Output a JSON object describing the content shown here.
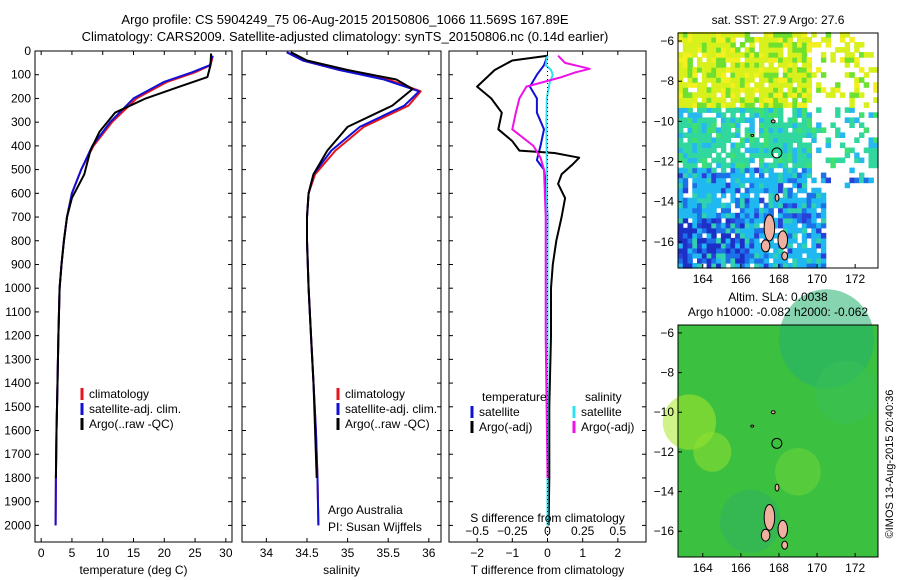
{
  "header": {
    "line1": "Argo profile: CS 5904249_75 06-Aug-2015 20150806_1066 11.569S 167.89E",
    "line2": "Climatology: CARS2009. Satellite-adjusted climatology: synTS_20150806.nc (0.14d earlier)"
  },
  "credit": "©IMOS 13-Aug-2015 20:40:36",
  "colors": {
    "climatology": "#e8141c",
    "satellite": "#1010d8",
    "argo": "#000000",
    "sat_salinity": "#30e0f0",
    "argo_salinity": "#f010e8"
  },
  "chart_data": [
    {
      "type": "line",
      "id": "temperature",
      "xlabel": "temperature (deg C)",
      "ylabel": "",
      "xlim": [
        -1,
        31
      ],
      "ylim": [
        2070,
        0
      ],
      "xticks": [
        0,
        5,
        10,
        15,
        20,
        25,
        30
      ],
      "yticks": [
        0,
        100,
        200,
        300,
        400,
        500,
        600,
        700,
        800,
        900,
        1000,
        1100,
        1200,
        1300,
        1400,
        1500,
        1600,
        1700,
        1800,
        1900,
        2000
      ],
      "legend": [
        "climatology",
        "satellite-adj. clim.",
        "Argo(..raw -QC)"
      ],
      "legend_position": "lower-middle",
      "series": [
        {
          "name": "climatology",
          "color": "#e8141c",
          "x": [
            27.9,
            27.5,
            25.0,
            20.5,
            15.5,
            11.5,
            8.5,
            6.5,
            5.0,
            4.2,
            3.7,
            3.3,
            3.0,
            2.8,
            2.65,
            2.5,
            2.4,
            2.35
          ],
          "y": [
            20,
            60,
            90,
            130,
            200,
            300,
            400,
            500,
            600,
            700,
            800,
            900,
            1000,
            1200,
            1400,
            1600,
            1800,
            2000
          ]
        },
        {
          "name": "satellite-adj. clim.",
          "color": "#1010d8",
          "x": [
            27.8,
            27.4,
            24.5,
            20.0,
            15.0,
            11.2,
            8.3,
            6.5,
            5.0,
            4.2,
            3.7,
            3.3,
            3.0,
            2.8,
            2.65,
            2.5,
            2.4,
            2.35
          ],
          "y": [
            20,
            60,
            90,
            130,
            200,
            300,
            400,
            500,
            600,
            700,
            800,
            900,
            1000,
            1200,
            1400,
            1600,
            1800,
            2000
          ]
        },
        {
          "name": "Argo(..raw -QC)",
          "color": "#000000",
          "x": [
            27.6,
            27.5,
            27.0,
            22.5,
            17.0,
            12.0,
            9.5,
            8.0,
            7.0,
            5.0,
            4.2,
            3.7,
            3.3,
            3.0,
            2.8,
            2.65,
            2.5,
            2.4
          ],
          "y": [
            10,
            60,
            110,
            150,
            200,
            260,
            340,
            420,
            520,
            620,
            700,
            800,
            900,
            1000,
            1200,
            1400,
            1600,
            1800
          ]
        }
      ]
    },
    {
      "type": "line",
      "id": "salinity",
      "xlabel": "salinity",
      "ylabel": "",
      "xlim": [
        33.7,
        36.15
      ],
      "ylim": [
        2070,
        0
      ],
      "xticks": [
        34,
        34.5,
        35,
        35.5,
        36
      ],
      "legend": [
        "climatology",
        "satellite-adj. clim.",
        "Argo(..raw -QC)"
      ],
      "legend_position": "lower-middle",
      "annotation": [
        "Argo Australia",
        "PI: Susan Wijffels"
      ],
      "series": [
        {
          "name": "climatology",
          "color": "#e8141c",
          "x": [
            34.25,
            34.45,
            34.9,
            35.5,
            35.9,
            35.75,
            35.2,
            34.85,
            34.6,
            34.52,
            34.5,
            34.5,
            34.52,
            34.55,
            34.58,
            34.61,
            34.63,
            34.64
          ],
          "y": [
            5,
            40,
            80,
            120,
            170,
            230,
            320,
            420,
            520,
            600,
            700,
            800,
            1000,
            1200,
            1400,
            1600,
            1800,
            2000
          ]
        },
        {
          "name": "satellite-adj. clim.",
          "color": "#1010d8",
          "x": [
            34.25,
            34.45,
            34.9,
            35.45,
            35.88,
            35.7,
            35.15,
            34.8,
            34.58,
            34.52,
            34.5,
            34.5,
            34.52,
            34.55,
            34.58,
            34.61,
            34.63,
            34.64
          ],
          "y": [
            5,
            40,
            80,
            120,
            170,
            230,
            320,
            420,
            520,
            600,
            700,
            800,
            1000,
            1200,
            1400,
            1600,
            1800,
            2000
          ]
        },
        {
          "name": "Argo(..raw -QC)",
          "color": "#000000",
          "x": [
            34.3,
            34.5,
            35.0,
            35.6,
            35.8,
            35.55,
            35.0,
            34.75,
            34.58,
            34.52,
            34.5,
            34.5,
            34.52,
            34.55,
            34.58,
            34.6,
            34.62
          ],
          "y": [
            5,
            40,
            80,
            120,
            160,
            230,
            320,
            420,
            520,
            600,
            700,
            800,
            1000,
            1200,
            1400,
            1600,
            1800
          ]
        }
      ]
    },
    {
      "type": "line",
      "id": "difference",
      "xlabel": "T difference from climatology",
      "xlabel_top": "S difference from climatology",
      "xlim": [
        -2.8,
        2.8
      ],
      "ylim": [
        2070,
        0
      ],
      "xticks": [
        -2,
        -1,
        0,
        1,
        2
      ],
      "xticks_s": [
        -0.5,
        -0.25,
        0,
        0.25,
        0.5
      ],
      "legend_temperature": {
        "title": "temperature",
        "items": [
          "satellite",
          "Argo(-adj)"
        ]
      },
      "legend_salinity": {
        "title": "salinity",
        "items": [
          "satellite",
          "Argo(-adj)"
        ]
      },
      "legend_position": "lower-middle",
      "series": [
        {
          "name": "temperature satellite",
          "color": "#1010d8",
          "x": [
            0.0,
            -0.1,
            -0.3,
            -0.5,
            -0.3,
            -0.3,
            -0.1,
            -0.2,
            -0.3,
            -0.1,
            -0.05,
            0,
            0,
            0,
            0,
            0,
            0
          ],
          "y": [
            20,
            60,
            100,
            150,
            200,
            260,
            330,
            400,
            460,
            500,
            550,
            700,
            900,
            1200,
            1500,
            1800,
            2000
          ]
        },
        {
          "name": "temperature Argo(-adj)",
          "color": "#000000",
          "x": [
            0.0,
            -1.0,
            -1.5,
            -2.0,
            -1.6,
            -1.3,
            -1.4,
            -1.0,
            -0.8,
            0.2,
            0.9,
            0.7,
            0.4,
            0.3,
            0.5,
            0.4,
            0.25,
            0.15,
            0.1,
            0.1,
            0.05,
            0.05,
            0.03
          ],
          "y": [
            20,
            40,
            80,
            150,
            200,
            260,
            330,
            380,
            420,
            430,
            450,
            480,
            520,
            560,
            620,
            700,
            800,
            900,
            1000,
            1200,
            1500,
            1800,
            2000
          ]
        },
        {
          "name": "salinity satellite",
          "color": "#30e0f0",
          "x": [
            0.0,
            -0.05,
            0.1,
            0.15,
            0.05,
            -0.02,
            -0.03,
            -0.02,
            0,
            0,
            0,
            0
          ],
          "y": [
            20,
            60,
            80,
            100,
            140,
            200,
            300,
            500,
            800,
            1200,
            1600,
            2000
          ]
        },
        {
          "name": "salinity Argo(-adj)",
          "color": "#f010e8",
          "x": [
            0.3,
            0.5,
            1.2,
            0.8,
            0.4,
            -0.6,
            -0.8,
            -0.9,
            -1.0,
            -0.4,
            -0.2,
            -0.1,
            -0.05,
            -0.05,
            0.0
          ],
          "y": [
            20,
            50,
            75,
            90,
            110,
            150,
            200,
            260,
            330,
            400,
            450,
            500,
            700,
            1200,
            1800
          ]
        }
      ]
    },
    {
      "type": "heatmap",
      "id": "sst_map",
      "title": "sat. SST: 27.9 Argo: 27.6",
      "xlim": [
        162.7,
        173.2
      ],
      "ylim": [
        -17.3,
        -5.6
      ],
      "xticks": [
        164,
        166,
        168,
        170,
        172
      ],
      "yticks": [
        -6,
        -8,
        -10,
        -12,
        -14,
        -16
      ],
      "marker": {
        "lon": 167.89,
        "lat": -11.569
      }
    },
    {
      "type": "heatmap",
      "id": "sla_map",
      "title": "Altim. SLA: 0.0038",
      "subtitle": "Argo h1000: -0.082 h2000: -0.062",
      "xlim": [
        162.7,
        173.2
      ],
      "ylim": [
        -17.3,
        -5.6
      ],
      "xticks": [
        164,
        166,
        168,
        170,
        172
      ],
      "yticks": [
        -6,
        -8,
        -10,
        -12,
        -14,
        -16
      ],
      "marker": {
        "lon": 167.89,
        "lat": -11.569
      }
    }
  ]
}
